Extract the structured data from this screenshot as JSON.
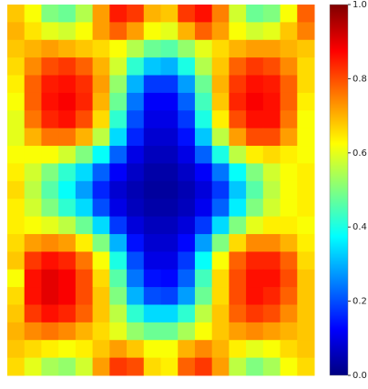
{
  "chart_data": {
    "type": "heatmap",
    "colormap": "jet",
    "clim": [
      0,
      1
    ],
    "cticks": [
      {
        "value": 0,
        "label": "0.0"
      },
      0.2,
      0.4,
      0.6,
      0.8,
      {
        "value": 1,
        "label": "1.0"
      }
    ],
    "values": [
      [
        0.68,
        0.62,
        0.5,
        0.48,
        0.55,
        0.72,
        0.85,
        0.82,
        0.7,
        0.68,
        0.82,
        0.86,
        0.75,
        0.58,
        0.48,
        0.5,
        0.62,
        0.78
      ],
      [
        0.7,
        0.65,
        0.6,
        0.58,
        0.62,
        0.72,
        0.78,
        0.72,
        0.62,
        0.6,
        0.7,
        0.78,
        0.72,
        0.62,
        0.58,
        0.6,
        0.68,
        0.75
      ],
      [
        0.68,
        0.7,
        0.72,
        0.7,
        0.68,
        0.66,
        0.62,
        0.55,
        0.48,
        0.46,
        0.52,
        0.6,
        0.66,
        0.7,
        0.72,
        0.72,
        0.7,
        0.68
      ],
      [
        0.66,
        0.74,
        0.8,
        0.82,
        0.78,
        0.7,
        0.58,
        0.42,
        0.32,
        0.3,
        0.4,
        0.55,
        0.68,
        0.78,
        0.82,
        0.8,
        0.74,
        0.66
      ],
      [
        0.64,
        0.78,
        0.85,
        0.86,
        0.83,
        0.72,
        0.52,
        0.3,
        0.18,
        0.18,
        0.28,
        0.48,
        0.7,
        0.82,
        0.86,
        0.85,
        0.78,
        0.66
      ],
      [
        0.62,
        0.78,
        0.86,
        0.88,
        0.84,
        0.7,
        0.48,
        0.24,
        0.12,
        0.12,
        0.22,
        0.44,
        0.68,
        0.84,
        0.88,
        0.86,
        0.78,
        0.64
      ],
      [
        0.6,
        0.76,
        0.84,
        0.86,
        0.8,
        0.66,
        0.42,
        0.2,
        0.1,
        0.1,
        0.18,
        0.4,
        0.64,
        0.8,
        0.86,
        0.86,
        0.76,
        0.62
      ],
      [
        0.6,
        0.7,
        0.76,
        0.76,
        0.7,
        0.56,
        0.34,
        0.16,
        0.08,
        0.08,
        0.14,
        0.32,
        0.56,
        0.72,
        0.8,
        0.8,
        0.72,
        0.62
      ],
      [
        0.62,
        0.62,
        0.62,
        0.58,
        0.5,
        0.38,
        0.22,
        0.1,
        0.06,
        0.06,
        0.1,
        0.22,
        0.4,
        0.56,
        0.64,
        0.66,
        0.64,
        0.62
      ],
      [
        0.64,
        0.58,
        0.5,
        0.42,
        0.34,
        0.22,
        0.12,
        0.07,
        0.04,
        0.04,
        0.07,
        0.12,
        0.24,
        0.38,
        0.5,
        0.58,
        0.62,
        0.64
      ],
      [
        0.66,
        0.56,
        0.46,
        0.38,
        0.28,
        0.16,
        0.08,
        0.05,
        0.03,
        0.03,
        0.05,
        0.09,
        0.18,
        0.32,
        0.46,
        0.56,
        0.62,
        0.64
      ],
      [
        0.64,
        0.58,
        0.5,
        0.42,
        0.34,
        0.2,
        0.1,
        0.06,
        0.04,
        0.04,
        0.06,
        0.11,
        0.22,
        0.36,
        0.5,
        0.58,
        0.62,
        0.64
      ],
      [
        0.64,
        0.62,
        0.6,
        0.56,
        0.48,
        0.34,
        0.18,
        0.09,
        0.06,
        0.06,
        0.09,
        0.18,
        0.34,
        0.5,
        0.6,
        0.64,
        0.64,
        0.62
      ],
      [
        0.66,
        0.72,
        0.74,
        0.72,
        0.64,
        0.5,
        0.3,
        0.14,
        0.08,
        0.08,
        0.13,
        0.28,
        0.5,
        0.66,
        0.74,
        0.74,
        0.7,
        0.64
      ],
      [
        0.68,
        0.82,
        0.86,
        0.84,
        0.76,
        0.62,
        0.4,
        0.2,
        0.1,
        0.1,
        0.18,
        0.38,
        0.62,
        0.78,
        0.84,
        0.84,
        0.78,
        0.66
      ],
      [
        0.62,
        0.86,
        0.9,
        0.88,
        0.8,
        0.66,
        0.46,
        0.24,
        0.14,
        0.13,
        0.22,
        0.44,
        0.66,
        0.8,
        0.86,
        0.86,
        0.8,
        0.68
      ],
      [
        0.66,
        0.86,
        0.9,
        0.88,
        0.8,
        0.68,
        0.5,
        0.3,
        0.2,
        0.19,
        0.28,
        0.48,
        0.66,
        0.8,
        0.86,
        0.84,
        0.78,
        0.68
      ],
      [
        0.68,
        0.82,
        0.86,
        0.84,
        0.78,
        0.68,
        0.56,
        0.42,
        0.34,
        0.34,
        0.42,
        0.56,
        0.68,
        0.78,
        0.82,
        0.8,
        0.74,
        0.68
      ],
      [
        0.7,
        0.74,
        0.76,
        0.74,
        0.7,
        0.66,
        0.6,
        0.52,
        0.48,
        0.48,
        0.54,
        0.62,
        0.68,
        0.72,
        0.74,
        0.72,
        0.7,
        0.68
      ],
      [
        0.68,
        0.66,
        0.64,
        0.62,
        0.64,
        0.68,
        0.72,
        0.68,
        0.62,
        0.62,
        0.7,
        0.74,
        0.7,
        0.64,
        0.6,
        0.62,
        0.66,
        0.68
      ],
      [
        0.66,
        0.6,
        0.54,
        0.52,
        0.58,
        0.72,
        0.82,
        0.8,
        0.66,
        0.64,
        0.78,
        0.82,
        0.72,
        0.56,
        0.5,
        0.54,
        0.62,
        0.66
      ]
    ]
  }
}
